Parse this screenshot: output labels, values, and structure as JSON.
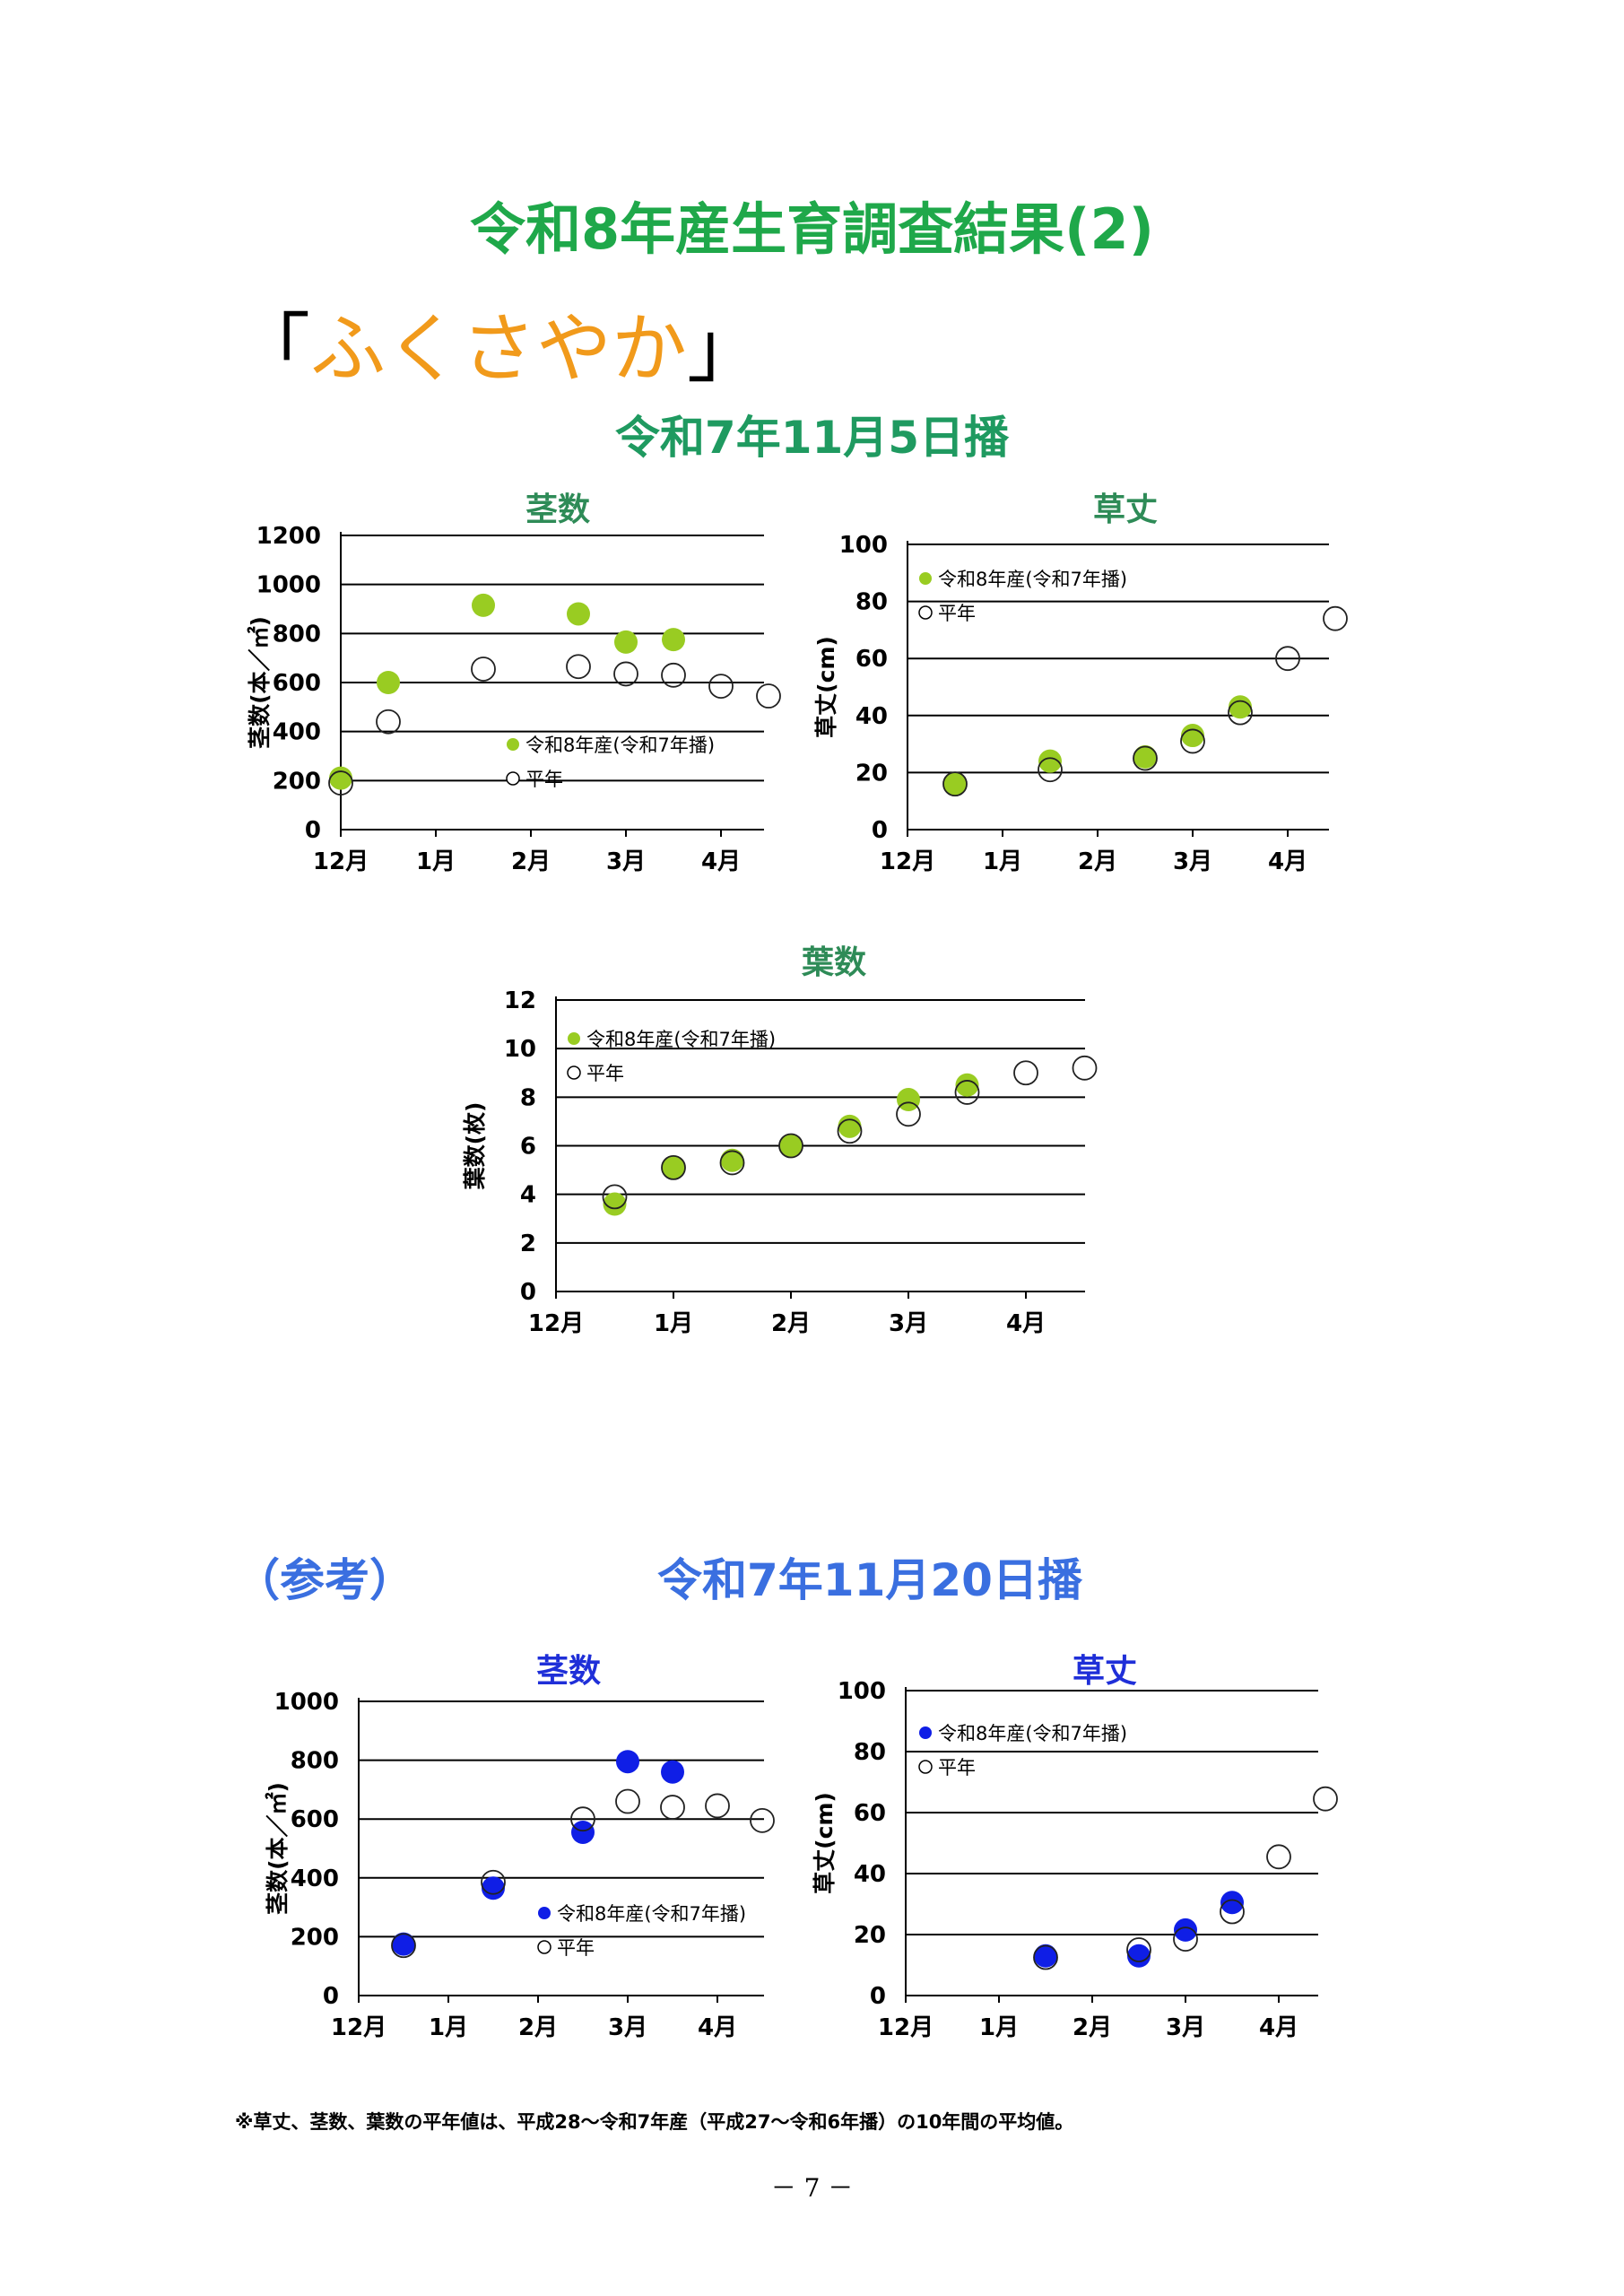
{
  "page": {
    "title": "令和8年産生育調査結果(2)",
    "variety_open": "「",
    "variety_name": "ふくさやか",
    "variety_close": "」",
    "sowing_1": "令和7年11月5日播",
    "reference": "（参考）",
    "sowing_2": "令和7年11月20日播",
    "footnote": "※草丈、茎数、葉数の平年値は、平成28～令和7年産（平成27～令和6年播）の10年間の平均値。",
    "page_number": "－ 7 －"
  },
  "colors": {
    "green": "#99cc22",
    "blue": "#0f1ee6",
    "title_green": "#1fa84a",
    "chart_title_green": "#2e8b57",
    "chart_title_blue": "#1f2fd8"
  },
  "chart_data": [
    {
      "id": "stems-1",
      "type": "scatter",
      "title": "茎数",
      "ylabel": "茎数(本／㎡)",
      "categories": [
        "12月",
        "1月",
        "2月",
        "3月",
        "4月"
      ],
      "ylim": [
        0,
        1200
      ],
      "yticks": [
        0,
        200,
        400,
        600,
        800,
        1000,
        1200
      ],
      "legend": [
        "令和8年産(令和7年播)",
        "平年"
      ],
      "legend_position": "bottom-right",
      "series": [
        {
          "name": "令和8年産(令和7年播)",
          "color": "green",
          "points": [
            [
              0,
              210
            ],
            [
              0.5,
              600
            ],
            [
              1.5,
              915
            ],
            [
              2.5,
              880
            ],
            [
              3,
              765
            ],
            [
              3.5,
              775
            ]
          ]
        },
        {
          "name": "平年",
          "points": [
            [
              0,
              190
            ],
            [
              0.5,
              440
            ],
            [
              1.5,
              655
            ],
            [
              2.5,
              665
            ],
            [
              3,
              635
            ],
            [
              3.5,
              630
            ],
            [
              4,
              585
            ],
            [
              4.5,
              545
            ]
          ]
        }
      ]
    },
    {
      "id": "height-1",
      "type": "scatter",
      "title": "草丈",
      "ylabel": "草丈(cm)",
      "categories": [
        "12月",
        "1月",
        "2月",
        "3月",
        "4月"
      ],
      "ylim": [
        0,
        100
      ],
      "yticks": [
        0,
        20,
        40,
        60,
        80,
        100
      ],
      "legend": [
        "令和8年産(令和7年播)",
        "平年"
      ],
      "legend_position": "top-left",
      "series": [
        {
          "name": "令和8年産(令和7年播)",
          "color": "green",
          "points": [
            [
              0.5,
              16
            ],
            [
              1.5,
              24
            ],
            [
              2.5,
              25.5
            ],
            [
              3,
              33
            ],
            [
              3.5,
              43
            ]
          ]
        },
        {
          "name": "平年",
          "points": [
            [
              0.5,
              16
            ],
            [
              1.5,
              21
            ],
            [
              2.5,
              25
            ],
            [
              3,
              31
            ],
            [
              3.5,
              41
            ],
            [
              4,
              60
            ],
            [
              4.5,
              74
            ]
          ]
        }
      ]
    },
    {
      "id": "leaves-1",
      "type": "scatter",
      "title": "葉数",
      "ylabel": "葉数(枚)",
      "categories": [
        "12月",
        "1月",
        "2月",
        "3月",
        "4月"
      ],
      "ylim": [
        0,
        12
      ],
      "yticks": [
        0,
        2,
        4,
        6,
        8,
        10,
        12
      ],
      "legend": [
        "令和8年産(令和7年播)",
        "平年"
      ],
      "legend_position": "top-left",
      "series": [
        {
          "name": "令和8年産(令和7年播)",
          "color": "green",
          "points": [
            [
              0.5,
              3.6
            ],
            [
              1,
              5.1
            ],
            [
              1.5,
              5.4
            ],
            [
              2,
              6.0
            ],
            [
              2.5,
              6.8
            ],
            [
              3,
              7.9
            ],
            [
              3.5,
              8.5
            ]
          ]
        },
        {
          "name": "平年",
          "points": [
            [
              0.5,
              3.9
            ],
            [
              1,
              5.1
            ],
            [
              1.5,
              5.3
            ],
            [
              2,
              6.0
            ],
            [
              2.5,
              6.6
            ],
            [
              3,
              7.3
            ],
            [
              3.5,
              8.2
            ],
            [
              4,
              9.0
            ],
            [
              4.5,
              9.2
            ]
          ]
        }
      ]
    },
    {
      "id": "stems-2",
      "type": "scatter",
      "title": "茎数",
      "ylabel": "茎数(本／㎡)",
      "categories": [
        "12月",
        "1月",
        "2月",
        "3月",
        "4月"
      ],
      "ylim": [
        0,
        1000
      ],
      "yticks": [
        0,
        200,
        400,
        600,
        800,
        1000
      ],
      "legend": [
        "令和8年産(令和7年播)",
        "平年"
      ],
      "legend_position": "bottom-right",
      "series": [
        {
          "name": "令和8年産(令和7年播)",
          "color": "blue",
          "points": [
            [
              0.5,
              175
            ],
            [
              1.5,
              365
            ],
            [
              2.5,
              555
            ],
            [
              3,
              795
            ],
            [
              3.5,
              760
            ]
          ]
        },
        {
          "name": "平年",
          "points": [
            [
              0.5,
              170
            ],
            [
              1.5,
              385
            ],
            [
              2.5,
              600
            ],
            [
              3,
              660
            ],
            [
              3.5,
              640
            ],
            [
              4,
              645
            ],
            [
              4.5,
              595
            ]
          ]
        }
      ]
    },
    {
      "id": "height-2",
      "type": "scatter",
      "title": "草丈",
      "ylabel": "草丈(cm)",
      "categories": [
        "12月",
        "1月",
        "2月",
        "3月",
        "4月"
      ],
      "ylim": [
        0,
        100
      ],
      "yticks": [
        0,
        20,
        40,
        60,
        80,
        100
      ],
      "legend": [
        "令和8年産(令和7年播)",
        "平年"
      ],
      "legend_position": "top-left",
      "series": [
        {
          "name": "令和8年産(令和7年播)",
          "color": "blue",
          "points": [
            [
              1.5,
              13
            ],
            [
              2.5,
              13
            ],
            [
              3,
              21.5
            ],
            [
              3.5,
              30.5
            ]
          ]
        },
        {
          "name": "平年",
          "points": [
            [
              1.5,
              12.5
            ],
            [
              2.5,
              15
            ],
            [
              3,
              18.5
            ],
            [
              3.5,
              27.5
            ],
            [
              4,
              45.5
            ],
            [
              4.5,
              64.5
            ]
          ]
        }
      ]
    }
  ]
}
